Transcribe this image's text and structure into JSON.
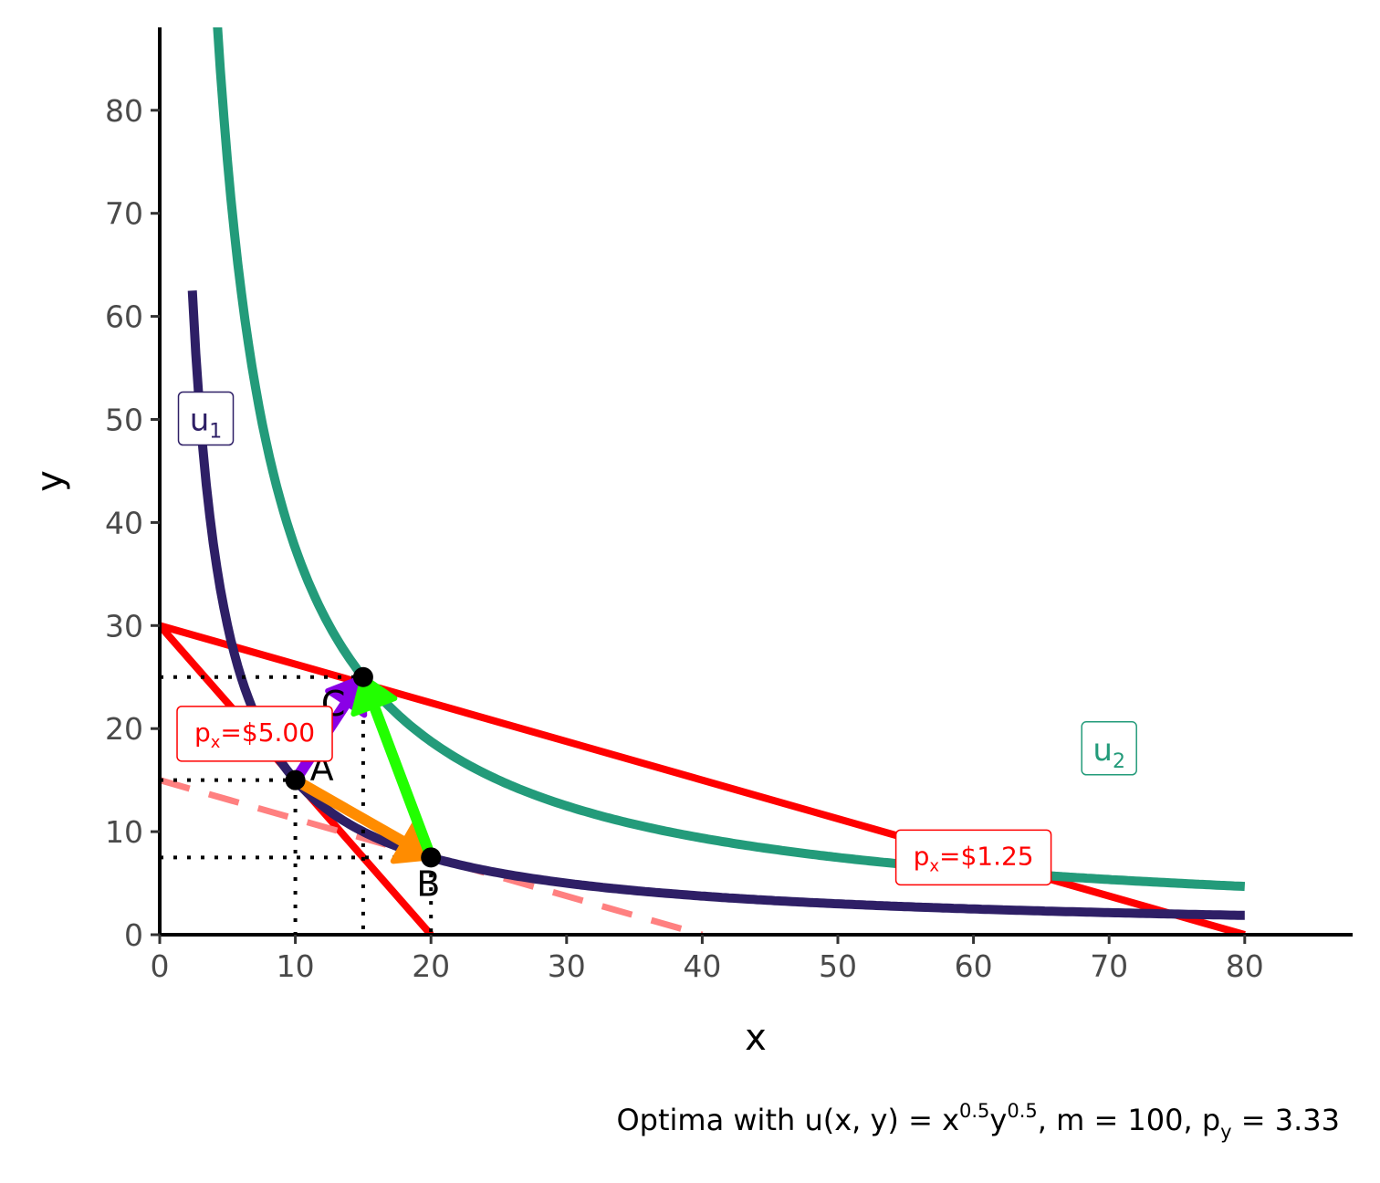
{
  "chart_data": {
    "type": "line",
    "xlabel": "x",
    "ylabel": "y",
    "xlim": [
      0,
      88
    ],
    "ylim": [
      0,
      88
    ],
    "x_ticks": [
      0,
      10,
      20,
      30,
      40,
      50,
      60,
      70,
      80
    ],
    "y_ticks": [
      0,
      10,
      20,
      30,
      40,
      50,
      60,
      70,
      80
    ],
    "grid": false,
    "caption": {
      "prefix": "Optima with u",
      "paren_open": "(",
      "args": "x, y",
      "paren_close": ")",
      "eq1": " = x",
      "exp_x": "0.5",
      "y_var": "y",
      "exp_y": "0.5",
      "rest": ", m = 100, p",
      "py_sub": "y",
      "py_val": " = 3.33"
    },
    "indifference_curves": [
      {
        "name": "u",
        "subscript": "1",
        "utility": 12.247,
        "x_range": [
          2.4,
          80
        ],
        "color": "#2e1f66",
        "label_x": 3.4,
        "label_y": 50
      },
      {
        "name": "u",
        "subscript": "2",
        "utility": 19.365,
        "x_range": [
          2.4,
          80
        ],
        "color": "#239b7a",
        "label_x": 70,
        "label_y": 18
      }
    ],
    "budget_lines": [
      {
        "p_x": 5.0,
        "x_intercept": 20,
        "y_intercept": 30,
        "color": "#ff0000",
        "style": "solid",
        "label_main": "p",
        "label_sub": "x",
        "label_rest": "=$5.00",
        "label_x": 7,
        "label_y": 19.5
      },
      {
        "p_x": 1.25,
        "x_intercept": 80,
        "y_intercept": 30,
        "color": "#ff0000",
        "style": "solid",
        "label_main": "p",
        "label_sub": "x",
        "label_rest": "=$1.25",
        "label_x": 60,
        "label_y": 7.5
      },
      {
        "p_x": 1.25,
        "x_intercept": 40,
        "y_intercept": 15,
        "color": "#ff8080",
        "style": "dashed"
      }
    ],
    "points": [
      {
        "label": "A",
        "x": 10,
        "y": 15
      },
      {
        "label": "B",
        "x": 20,
        "y": 7.5
      },
      {
        "label": "C",
        "x": 15,
        "y": 25
      }
    ],
    "arrows": [
      {
        "from": "A",
        "to": "C",
        "color": "#8a00e6"
      },
      {
        "from": "A",
        "to": "B",
        "color": "#ff8c00"
      },
      {
        "from": "B",
        "to": "C",
        "color": "#22ff00"
      }
    ]
  }
}
